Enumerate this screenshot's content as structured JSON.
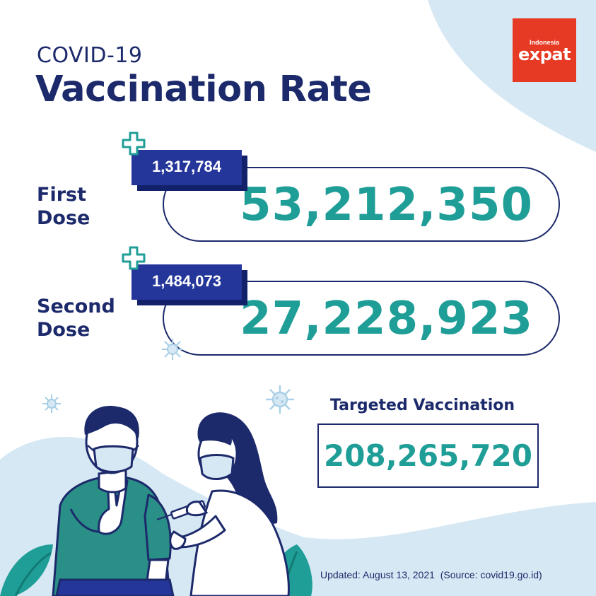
{
  "header": {
    "subtitle": "COVID-19",
    "title": "Vaccination Rate"
  },
  "logo": {
    "small_text": "Indonesia",
    "big_text": "expat",
    "color": "#e63a24"
  },
  "doses": [
    {
      "label_line1": "First",
      "label_line2": "Dose",
      "increase": "1,317,784",
      "total": "53,212,350"
    },
    {
      "label_line1": "Second",
      "label_line2": "Dose",
      "increase": "1,484,073",
      "total": "27,228,923"
    }
  ],
  "target": {
    "label": "Targeted Vaccination",
    "value": "208,265,720"
  },
  "footer": {
    "updated": "Updated: August 13, 2021  (Source: covid19.go.id)"
  },
  "colors": {
    "navy": "#1c2a6b",
    "tag_blue": "#25369a",
    "teal": "#1f9e97",
    "light_blue": "#d6e8f3"
  },
  "icons": [
    "plus-icon",
    "virus-icon"
  ]
}
